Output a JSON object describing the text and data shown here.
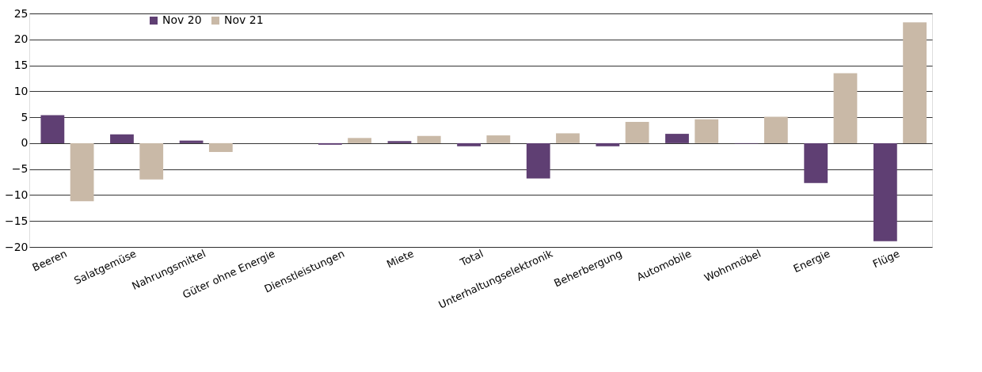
{
  "chart_data": {
    "type": "bar",
    "categories": [
      "Beeren",
      "Salatgemüse",
      "Nahrungsmittel",
      "Güter ohne Energie",
      "Dienstleistungen",
      "Miete",
      "Total",
      "Unterhaltungselektronik",
      "Beherbergung",
      "Automobile",
      "Wohnmöbel",
      "Energie",
      "Flüge"
    ],
    "series": [
      {
        "name": "Nov 20",
        "color": "#5f3f73",
        "values": [
          5.4,
          1.7,
          0.5,
          null,
          -0.3,
          0.4,
          -0.6,
          -6.8,
          -0.6,
          1.8,
          -0.1,
          -7.7,
          -18.9
        ]
      },
      {
        "name": "Nov 21",
        "color": "#c9b9a7",
        "values": [
          -11.2,
          -7.0,
          -1.7,
          null,
          1.0,
          1.4,
          1.5,
          1.9,
          4.1,
          4.6,
          5.1,
          13.5,
          23.3
        ]
      }
    ],
    "ylim": [
      -20,
      25
    ],
    "yticks": [
      -20,
      -15,
      -10,
      -5,
      0,
      5,
      10,
      15,
      20,
      25
    ],
    "grid": "y",
    "legend": "top left"
  }
}
